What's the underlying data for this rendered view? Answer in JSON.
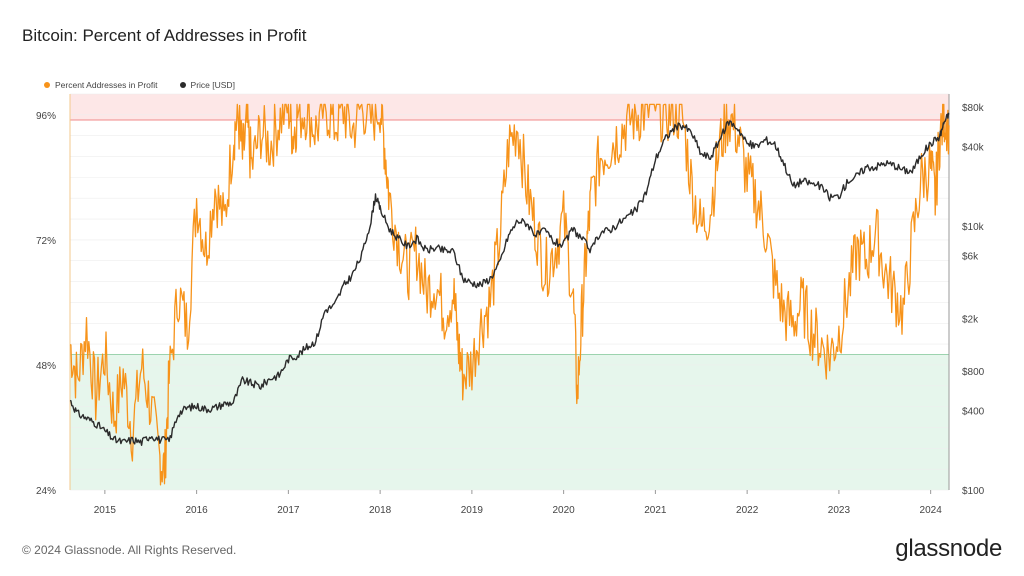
{
  "title": "Bitcoin: Percent of Addresses in Profit",
  "legend": {
    "profit_label": "Percent Addresses in Profit",
    "price_label": "Price [USD]"
  },
  "colors": {
    "profit": "#f7931a",
    "price": "#2b2b2b",
    "upper_band": "#fde7e7",
    "upper_line": "#f08a8a",
    "lower_band": "#e6f6ec",
    "lower_line": "#9cd3ae"
  },
  "footer": "© 2024 Glassnode. All Rights Reserved.",
  "brand": "glassnode",
  "chart_data": {
    "type": "line",
    "title": "Bitcoin: Percent of Addresses in Profit",
    "x_range": [
      2014.62,
      2024.2
    ],
    "left_axis": {
      "label": "Percent Addresses in Profit",
      "ylim": [
        24,
        100
      ],
      "ticks": [
        "24%",
        "48%",
        "72%",
        "96%"
      ],
      "tick_values": [
        24,
        48,
        72,
        96
      ]
    },
    "right_axis": {
      "label": "Price [USD]",
      "scale": "log",
      "ylim": [
        100,
        100000
      ],
      "ticks": [
        "$100",
        "$400",
        "$800",
        "$2k",
        "$6k",
        "$10k",
        "$40k",
        "$80k"
      ],
      "tick_values": [
        100,
        400,
        800,
        2000,
        6000,
        10000,
        40000,
        80000
      ]
    },
    "x_ticks": [
      "2015",
      "2016",
      "2017",
      "2018",
      "2019",
      "2020",
      "2021",
      "2022",
      "2023",
      "2024"
    ],
    "x_tick_values": [
      2015,
      2016,
      2017,
      2018,
      2019,
      2020,
      2021,
      2022,
      2023,
      2024
    ],
    "bands": [
      {
        "name": "upper",
        "from": 95,
        "to": 100
      },
      {
        "name": "lower",
        "from": 24,
        "to": 50
      }
    ],
    "series": [
      {
        "name": "Percent Addresses in Profit",
        "axis": "left",
        "x": [
          2014.62,
          2014.7,
          2014.8,
          2014.9,
          2015.0,
          2015.1,
          2015.2,
          2015.3,
          2015.4,
          2015.5,
          2015.6,
          2015.65,
          2015.7,
          2015.8,
          2015.9,
          2016.0,
          2016.1,
          2016.2,
          2016.3,
          2016.4,
          2016.45,
          2016.5,
          2016.55,
          2016.6,
          2016.7,
          2016.8,
          2016.9,
          2017.0,
          2017.05,
          2017.1,
          2017.2,
          2017.3,
          2017.4,
          2017.5,
          2017.6,
          2017.7,
          2017.8,
          2017.9,
          2018.0,
          2018.05,
          2018.1,
          2018.2,
          2018.3,
          2018.4,
          2018.5,
          2018.6,
          2018.7,
          2018.8,
          2018.85,
          2018.9,
          2019.0,
          2019.1,
          2019.2,
          2019.3,
          2019.4,
          2019.5,
          2019.6,
          2019.7,
          2019.8,
          2019.9,
          2020.0,
          2020.1,
          2020.15,
          2020.2,
          2020.25,
          2020.3,
          2020.4,
          2020.5,
          2020.6,
          2020.7,
          2020.8,
          2020.9,
          2021.0,
          2021.1,
          2021.2,
          2021.3,
          2021.4,
          2021.5,
          2021.6,
          2021.7,
          2021.8,
          2021.9,
          2022.0,
          2022.1,
          2022.2,
          2022.3,
          2022.4,
          2022.5,
          2022.6,
          2022.7,
          2022.8,
          2022.9,
          2023.0,
          2023.1,
          2023.2,
          2023.3,
          2023.4,
          2023.5,
          2023.6,
          2023.7,
          2023.8,
          2023.9,
          2024.0,
          2024.05,
          2024.1,
          2024.15,
          2024.2
        ],
        "values": [
          52,
          45,
          55,
          42,
          50,
          38,
          46,
          35,
          48,
          40,
          30,
          28,
          45,
          62,
          55,
          80,
          70,
          82,
          75,
          92,
          96,
          88,
          94,
          86,
          93,
          90,
          95,
          98,
          92,
          96,
          97,
          93,
          98,
          94,
          97,
          93,
          98,
          95,
          98,
          90,
          80,
          72,
          66,
          70,
          62,
          64,
          58,
          62,
          52,
          46,
          48,
          56,
          60,
          72,
          90,
          94,
          82,
          74,
          66,
          70,
          76,
          62,
          42,
          58,
          70,
          80,
          88,
          90,
          92,
          95,
          96,
          97,
          98,
          96,
          97,
          95,
          82,
          74,
          78,
          90,
          96,
          92,
          84,
          80,
          74,
          64,
          58,
          56,
          60,
          55,
          52,
          50,
          54,
          62,
          70,
          68,
          74,
          66,
          62,
          58,
          72,
          84,
          86,
          80,
          92,
          96,
          94
        ]
      },
      {
        "name": "Price [USD]",
        "axis": "right",
        "x": [
          2014.62,
          2014.7,
          2014.8,
          2014.9,
          2015.0,
          2015.1,
          2015.2,
          2015.3,
          2015.4,
          2015.5,
          2015.6,
          2015.7,
          2015.8,
          2015.9,
          2016.0,
          2016.1,
          2016.2,
          2016.3,
          2016.4,
          2016.5,
          2016.6,
          2016.7,
          2016.8,
          2016.9,
          2017.0,
          2017.1,
          2017.2,
          2017.3,
          2017.4,
          2017.5,
          2017.6,
          2017.7,
          2017.8,
          2017.9,
          2017.95,
          2018.0,
          2018.1,
          2018.2,
          2018.3,
          2018.4,
          2018.5,
          2018.6,
          2018.7,
          2018.8,
          2018.9,
          2019.0,
          2019.1,
          2019.2,
          2019.3,
          2019.4,
          2019.5,
          2019.6,
          2019.7,
          2019.8,
          2019.9,
          2020.0,
          2020.1,
          2020.2,
          2020.3,
          2020.4,
          2020.5,
          2020.6,
          2020.7,
          2020.8,
          2020.9,
          2021.0,
          2021.1,
          2021.2,
          2021.3,
          2021.4,
          2021.5,
          2021.6,
          2021.7,
          2021.8,
          2021.9,
          2022.0,
          2022.1,
          2022.2,
          2022.3,
          2022.4,
          2022.5,
          2022.6,
          2022.7,
          2022.8,
          2022.9,
          2023.0,
          2023.1,
          2023.2,
          2023.3,
          2023.4,
          2023.5,
          2023.6,
          2023.7,
          2023.8,
          2023.9,
          2024.0,
          2024.1,
          2024.15,
          2024.2
        ],
        "values": [
          480,
          380,
          350,
          320,
          280,
          240,
          230,
          240,
          230,
          260,
          240,
          235,
          380,
          420,
          430,
          410,
          420,
          450,
          460,
          680,
          640,
          610,
          700,
          740,
          980,
          1050,
          1200,
          1350,
          2300,
          2500,
          3500,
          4300,
          6000,
          11000,
          17000,
          13500,
          9500,
          8000,
          7000,
          8000,
          6500,
          6800,
          6500,
          6400,
          4000,
          3700,
          3600,
          4000,
          5200,
          8500,
          11000,
          10500,
          8500,
          9200,
          7500,
          7200,
          9500,
          8000,
          6500,
          9000,
          9300,
          10500,
          11800,
          13500,
          18000,
          32000,
          45000,
          55000,
          58000,
          50000,
          35000,
          33000,
          45000,
          62000,
          55000,
          42000,
          40000,
          45000,
          42000,
          30000,
          20000,
          22000,
          21000,
          20000,
          16500,
          16800,
          22000,
          24000,
          28000,
          28000,
          30000,
          29000,
          26500,
          26000,
          35000,
          42000,
          48000,
          62000,
          70000
        ]
      }
    ]
  }
}
